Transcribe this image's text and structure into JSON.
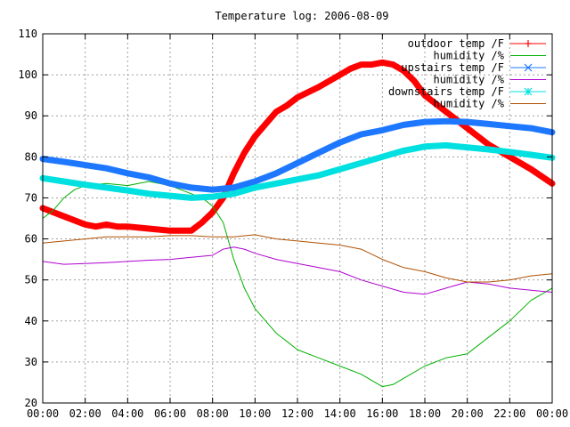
{
  "chart_data": {
    "type": "line",
    "title": "Temperature log: 2006-08-09",
    "xlabel": "",
    "ylabel": "",
    "xlim": [
      0,
      24
    ],
    "ylim": [
      20,
      110
    ],
    "x_ticks": [
      {
        "value": 0,
        "label": "00:00"
      },
      {
        "value": 2,
        "label": "02:00"
      },
      {
        "value": 4,
        "label": "04:00"
      },
      {
        "value": 6,
        "label": "06:00"
      },
      {
        "value": 8,
        "label": "08:00"
      },
      {
        "value": 10,
        "label": "10:00"
      },
      {
        "value": 12,
        "label": "12:00"
      },
      {
        "value": 14,
        "label": "14:00"
      },
      {
        "value": 16,
        "label": "16:00"
      },
      {
        "value": 18,
        "label": "18:00"
      },
      {
        "value": 20,
        "label": "20:00"
      },
      {
        "value": 22,
        "label": "22:00"
      },
      {
        "value": 24,
        "label": "00:00"
      }
    ],
    "y_ticks": [
      20,
      30,
      40,
      50,
      60,
      70,
      80,
      90,
      100,
      110
    ],
    "grid": true,
    "legend_position": "top-right",
    "series": [
      {
        "name": "outdoor temp /F",
        "color": "#ff0000",
        "marker": "plus",
        "thick": true,
        "x": [
          0,
          1,
          2,
          2.5,
          3,
          3.5,
          4,
          5,
          6,
          6.5,
          7,
          7.5,
          8,
          8.5,
          9,
          9.5,
          10,
          10.5,
          11,
          11.5,
          12,
          13,
          14,
          14.5,
          15,
          15.5,
          16,
          16.5,
          17,
          17.5,
          18,
          18.5,
          19,
          19.5,
          20,
          21,
          22,
          23,
          24
        ],
        "y": [
          67.5,
          65.5,
          63.5,
          63,
          63.5,
          63,
          63,
          62.5,
          62,
          62,
          62,
          64,
          66.5,
          70,
          76,
          81,
          85,
          88,
          91,
          92.5,
          94.5,
          97,
          100,
          101.5,
          102.5,
          102.5,
          103,
          102.5,
          101,
          98.5,
          95,
          93,
          91,
          89,
          87,
          83,
          80,
          77,
          73.5
        ]
      },
      {
        "name": "humidity /%",
        "color": "#00b000",
        "marker": "none",
        "thick": false,
        "x": [
          0,
          0.5,
          1,
          1.5,
          2,
          3,
          4,
          4.5,
          5,
          5.5,
          6,
          6.5,
          7,
          7.5,
          8,
          8.5,
          9,
          9.5,
          10,
          10.5,
          11,
          11.5,
          12,
          13,
          14,
          15,
          16,
          16.5,
          17,
          18,
          19,
          20,
          21,
          22,
          23,
          24
        ],
        "y": [
          65,
          67,
          70,
          72,
          73,
          73.5,
          73,
          73.5,
          74,
          73.5,
          73,
          72,
          71,
          70,
          68,
          64,
          55,
          48,
          43,
          40,
          37,
          35,
          33,
          31,
          29,
          27,
          24,
          24.5,
          26,
          29,
          31,
          32,
          36,
          40,
          45,
          48
        ]
      },
      {
        "name": "upstairs temp /F",
        "color": "#1e78ff",
        "marker": "x",
        "thick": true,
        "x": [
          0,
          1,
          2,
          3,
          4,
          5,
          6,
          7,
          8,
          9,
          10,
          11,
          12,
          13,
          14,
          15,
          16,
          17,
          18,
          19,
          20,
          21,
          22,
          23,
          24
        ],
        "y": [
          79.5,
          78.8,
          78,
          77.2,
          76,
          75,
          73.5,
          72.5,
          72,
          72.5,
          74,
          76,
          78.5,
          81,
          83.5,
          85.5,
          86.5,
          87.8,
          88.5,
          88.7,
          88.5,
          88,
          87.5,
          87,
          86
        ]
      },
      {
        "name": "humidity /%",
        "color": "#b000d0",
        "marker": "none",
        "thick": false,
        "x": [
          0,
          1,
          2,
          3,
          4,
          5,
          6,
          7,
          8,
          8.5,
          9,
          9.5,
          10,
          11,
          12,
          13,
          14,
          15,
          16,
          17,
          18,
          19,
          20,
          21,
          22,
          23,
          24
        ],
        "y": [
          54.5,
          53.8,
          54,
          54.2,
          54.5,
          54.8,
          55,
          55.5,
          56,
          57.5,
          58,
          57.5,
          56.5,
          55,
          54,
          53,
          52,
          50,
          48.5,
          47,
          46.5,
          48,
          49.5,
          49,
          48,
          47.5,
          47
        ]
      },
      {
        "name": "downstairs temp /F",
        "color": "#00e0e0",
        "marker": "star",
        "thick": true,
        "x": [
          0,
          1,
          2,
          3,
          4,
          5,
          6,
          7,
          8,
          9,
          10,
          11,
          12,
          13,
          14,
          15,
          16,
          17,
          18,
          19,
          20,
          21,
          22,
          23,
          24
        ],
        "y": [
          74.8,
          74,
          73.2,
          72.5,
          71.8,
          71,
          70.5,
          70,
          70.3,
          71,
          72.5,
          73.5,
          74.5,
          75.5,
          77,
          78.5,
          80,
          81.5,
          82.5,
          82.8,
          82.3,
          81.8,
          81.2,
          80.5,
          79.8
        ]
      },
      {
        "name": "humidity /%",
        "color": "#b05000",
        "marker": "none",
        "thick": false,
        "x": [
          0,
          1,
          2,
          3,
          4,
          5,
          6,
          7,
          8,
          9,
          10,
          11,
          12,
          13,
          14,
          15,
          16,
          17,
          18,
          19,
          20,
          21,
          22,
          23,
          24
        ],
        "y": [
          59,
          59.5,
          60,
          60.5,
          60.5,
          60.5,
          60.8,
          60.8,
          60.5,
          60.5,
          61,
          60,
          59.5,
          59,
          58.5,
          57.5,
          55,
          53,
          52,
          50.5,
          49.5,
          49.5,
          50,
          51,
          51.5
        ]
      }
    ]
  }
}
